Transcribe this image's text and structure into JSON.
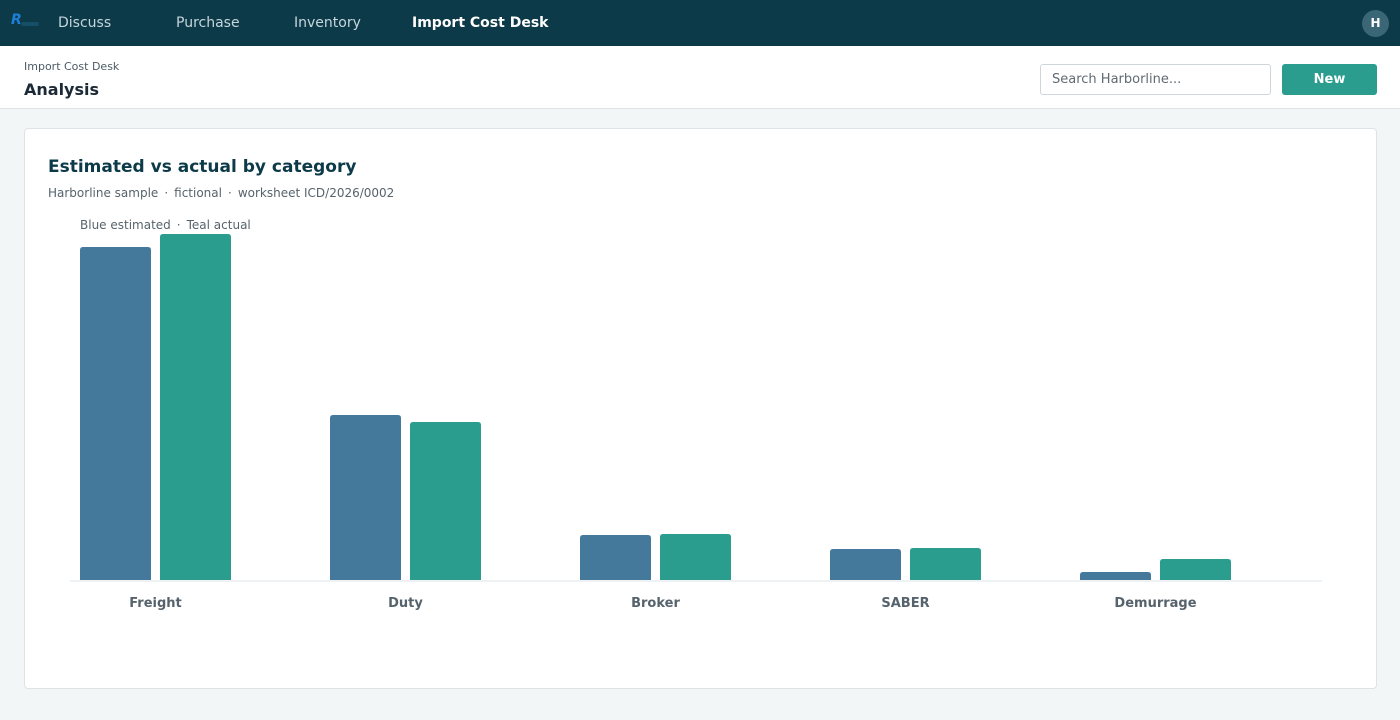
{
  "nav": {
    "items": [
      {
        "label": "Discuss"
      },
      {
        "label": "Purchase"
      },
      {
        "label": "Inventory"
      },
      {
        "label": "Import Cost Desk",
        "active": true
      }
    ],
    "avatar_initial": "H"
  },
  "header": {
    "breadcrumb": "Import Cost Desk",
    "title": "Analysis",
    "search_placeholder": "Search Harborline...",
    "new_label": "New"
  },
  "card": {
    "title": "Estimated vs actual by category",
    "subtitle_parts": [
      "Harborline sample",
      "fictional",
      "worksheet ICD/2026/0002"
    ],
    "subtitle_sep": "·",
    "legend_parts": [
      "Blue estimated",
      "Teal actual"
    ]
  },
  "chart_data": {
    "type": "bar",
    "categories": [
      "Freight",
      "Duty",
      "Broker",
      "SABER",
      "Demurrage"
    ],
    "series": [
      {
        "name": "Blue estimated",
        "color": "#44799c",
        "values": [
          333,
          165,
          45,
          31,
          8
        ]
      },
      {
        "name": "Teal actual",
        "color": "#2a9d8f",
        "values": [
          346,
          158,
          46,
          32,
          21
        ]
      }
    ],
    "ylim": [
      0,
      346
    ],
    "grid": false,
    "legend": "top-left"
  }
}
